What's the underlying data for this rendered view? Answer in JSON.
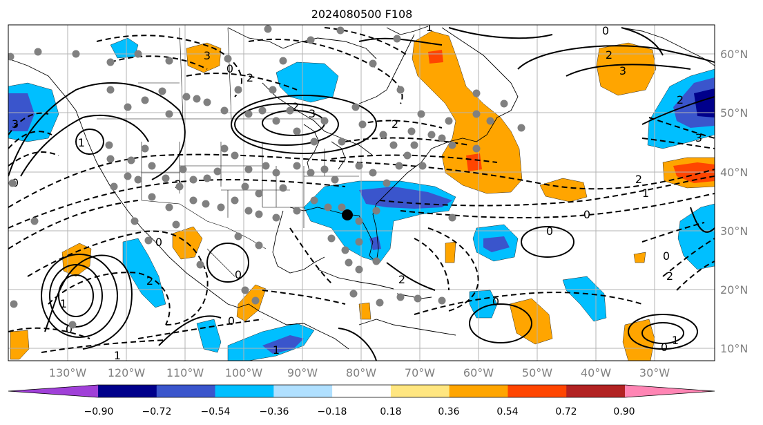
{
  "title": "2024080500 F108",
  "longitude_labels": [
    "130°W",
    "120°W",
    "110°W",
    "100°W",
    "90°W",
    "80°W",
    "70°W",
    "60°W",
    "50°W",
    "40°W",
    "30°W"
  ],
  "latitude_labels": [
    "60°N",
    "50°N",
    "40°N",
    "30°N",
    "20°N",
    "10°N"
  ],
  "colorbar": {
    "tick_labels": [
      "−0.90",
      "−0.72",
      "−0.54",
      "−0.36",
      "−0.18",
      "0.18",
      "0.36",
      "0.54",
      "0.72",
      "0.90"
    ],
    "colors": [
      "#a040d8",
      "#00008b",
      "#3a55cc",
      "#00bfff",
      "#b0e0ff",
      "#ffffff",
      "#ffe680",
      "#ffa500",
      "#ff4500",
      "#b22222",
      "#ff85b4"
    ]
  },
  "contour_labels": [
    "3",
    "2",
    "0",
    "2",
    "3",
    "2",
    "1",
    "0",
    "2",
    "3",
    "2",
    "2",
    "1",
    "0",
    "2",
    "3",
    "1",
    "0",
    "0",
    "1",
    "0",
    "1",
    "2",
    "0",
    "0",
    "1",
    "0",
    "2",
    "0",
    "1",
    "0",
    "3",
    "2",
    "0"
  ],
  "marker": {
    "name": "storm-center-marker"
  },
  "map_elements": [
    "coastlines",
    "political-borders",
    "lat-lon-grid",
    "station-dots",
    "contours",
    "shading"
  ]
}
